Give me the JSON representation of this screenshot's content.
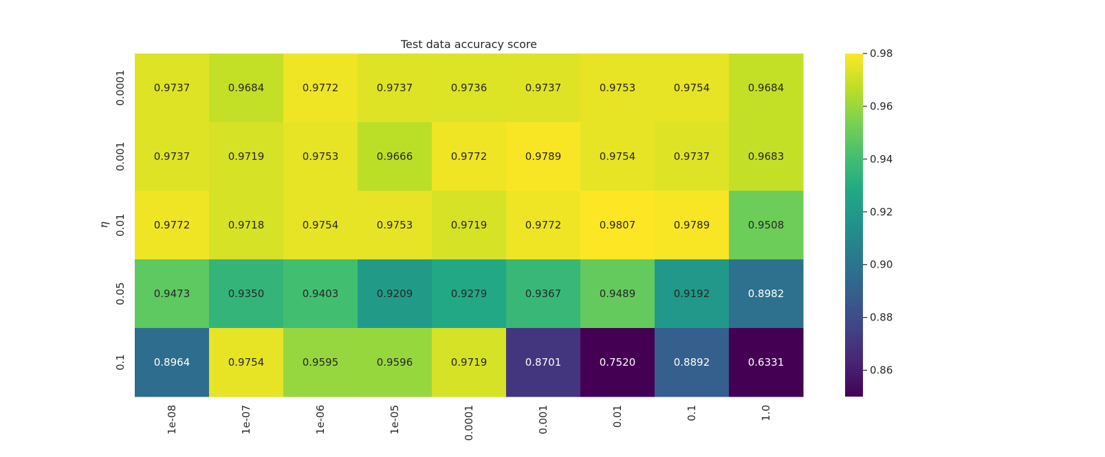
{
  "chart_data": {
    "type": "heatmap",
    "title": "Test data accuracy score",
    "xlabel": "",
    "ylabel": "η",
    "x_categories": [
      "1e-08",
      "1e-07",
      "1e-06",
      "1e-05",
      "0.0001",
      "0.001",
      "0.01",
      "0.1",
      "1.0"
    ],
    "y_categories": [
      "0.0001",
      "0.001",
      "0.01",
      "0.05",
      "0.1"
    ],
    "values": [
      [
        0.9737,
        0.9684,
        0.9772,
        0.9737,
        0.9736,
        0.9737,
        0.9753,
        0.9754,
        0.9684
      ],
      [
        0.9737,
        0.9719,
        0.9753,
        0.9666,
        0.9772,
        0.9789,
        0.9754,
        0.9737,
        0.9683
      ],
      [
        0.9772,
        0.9718,
        0.9754,
        0.9753,
        0.9719,
        0.9772,
        0.9807,
        0.9789,
        0.9508
      ],
      [
        0.9473,
        0.935,
        0.9403,
        0.9209,
        0.9279,
        0.9367,
        0.9489,
        0.9192,
        0.8982
      ],
      [
        0.8964,
        0.9754,
        0.9595,
        0.9596,
        0.9719,
        0.8701,
        0.752,
        0.8892,
        0.6331
      ]
    ],
    "colormap": "viridis",
    "vmin": 0.85,
    "vmax": 0.98,
    "colorbar_ticks": [
      "0.86",
      "0.88",
      "0.90",
      "0.92",
      "0.94",
      "0.96",
      "0.98"
    ],
    "annotations": true
  }
}
